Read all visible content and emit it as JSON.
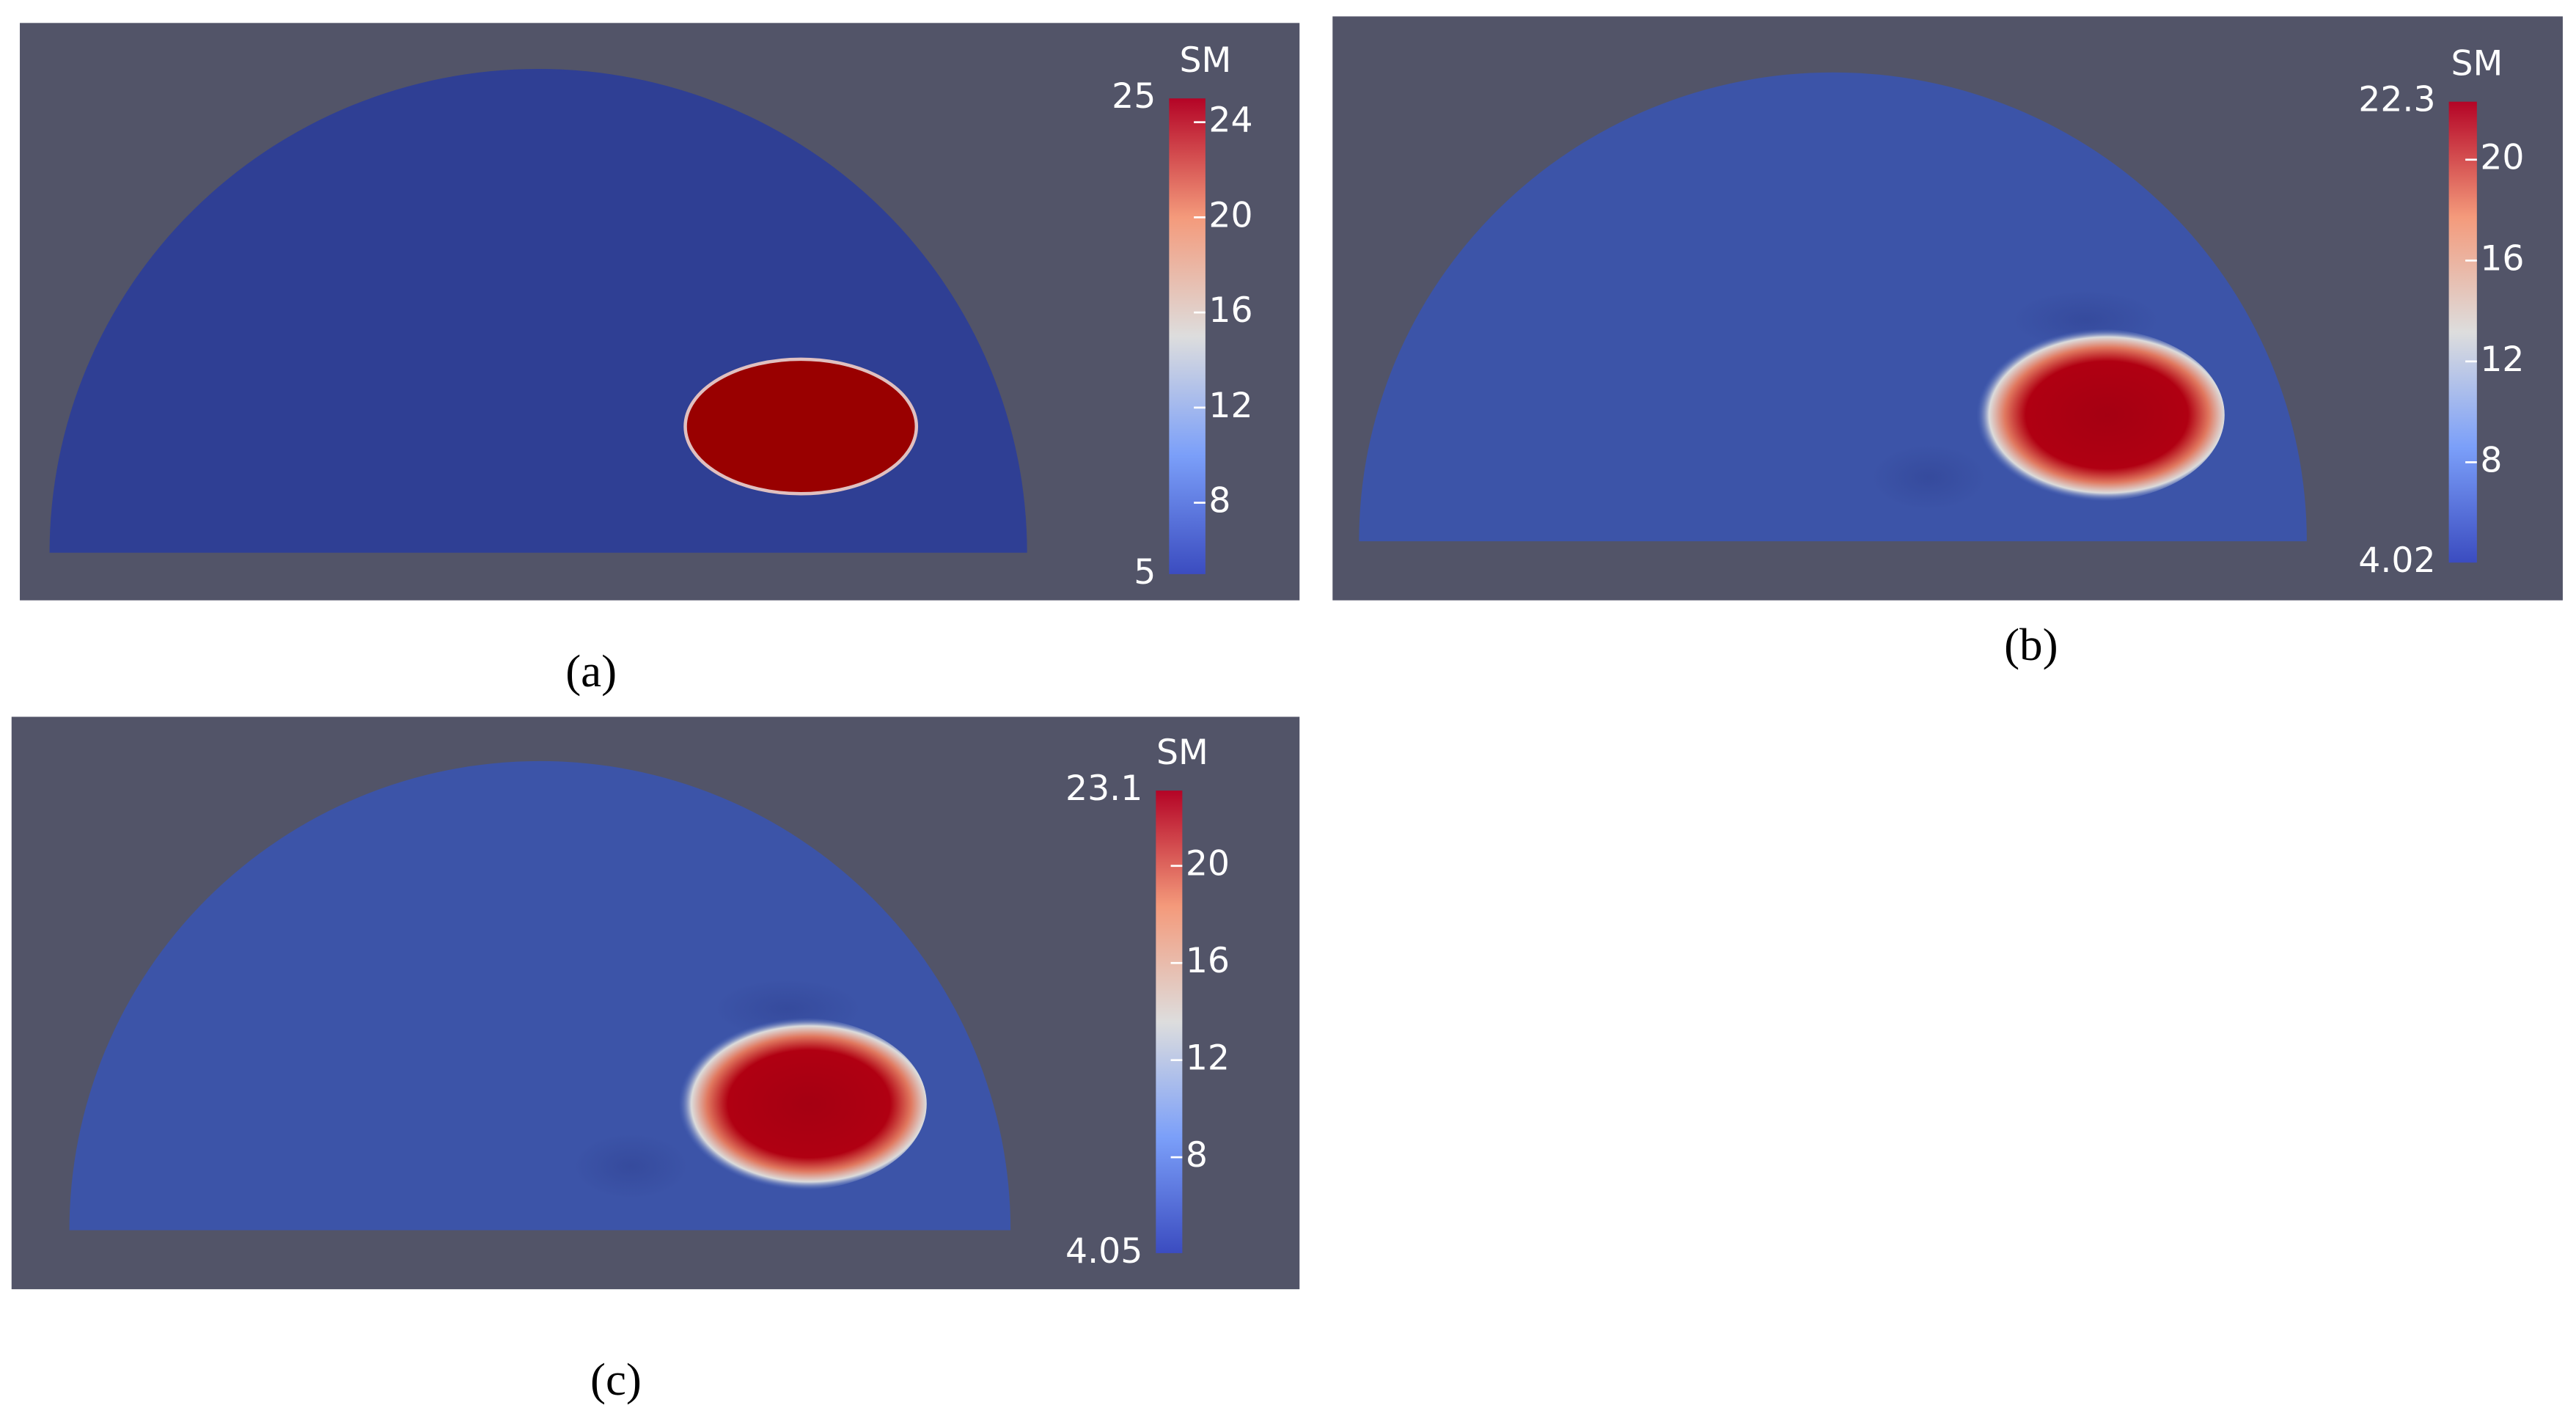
{
  "panels": [
    {
      "caption": "(a)",
      "colorbar": {
        "title": "SM",
        "max": 25,
        "min": 5,
        "ticks": [
          8,
          12,
          16,
          20,
          24
        ]
      }
    },
    {
      "caption": "(b)",
      "colorbar": {
        "title": "SM",
        "max": 22.3,
        "min": 4.02,
        "ticks": [
          8,
          12,
          16,
          20
        ]
      }
    },
    {
      "caption": "(c)",
      "colorbar": {
        "title": "SM",
        "max": 23.1,
        "min": 4.05,
        "ticks": [
          8,
          12,
          16,
          20
        ]
      }
    }
  ]
}
